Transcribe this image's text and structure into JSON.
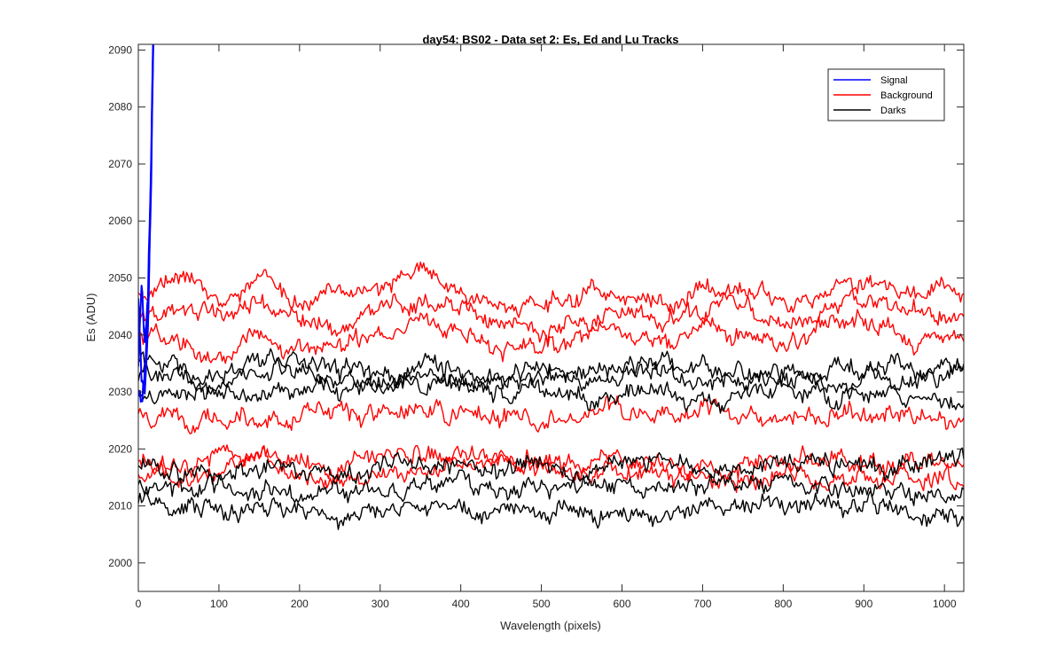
{
  "chart_data": {
    "type": "line",
    "title": "day54: BS02 - Data set 2: Es, Ed and Lu Tracks",
    "xlabel": "Wavelength (pixels)",
    "ylabel": "Es (ADU)",
    "xlim": [
      0,
      1024
    ],
    "ylim": [
      1995,
      2091
    ],
    "xticks": [
      "0",
      "100",
      "200",
      "300",
      "400",
      "500",
      "600",
      "700",
      "800",
      "900",
      "1000"
    ],
    "yticks": [
      "2000",
      "2010",
      "2020",
      "2030",
      "2040",
      "2050",
      "2060",
      "2070",
      "2080",
      "2090"
    ],
    "grid": false,
    "legend_position": "top-right",
    "legend": [
      {
        "name": "Signal",
        "color": "#0000ff"
      },
      {
        "name": "Background",
        "color": "#ff0000"
      },
      {
        "name": "Darks",
        "color": "#000000"
      }
    ],
    "noise_amplitude": 1.8,
    "series": [
      {
        "group": "Signal",
        "color": "#0000ff",
        "x": [
          0,
          4,
          8,
          12,
          16,
          20
        ],
        "y": [
          2047,
          2033,
          2030,
          2042,
          2068,
          2105
        ]
      },
      {
        "group": "Signal",
        "color": "#0000ff",
        "x": [
          0,
          4,
          8,
          12,
          16,
          20
        ],
        "y": [
          2030,
          2028,
          2033,
          2044,
          2070,
          2105
        ]
      },
      {
        "group": "Signal",
        "color": "#0000ff",
        "x": [
          0,
          4,
          8,
          12,
          16,
          20
        ],
        "y": [
          2035,
          2049,
          2039,
          2047,
          2072,
          2105
        ]
      },
      {
        "group": "Background",
        "color": "#ff0000",
        "x": [
          0,
          50,
          100,
          150,
          200,
          250,
          300,
          350,
          400,
          450,
          500,
          550,
          600,
          650,
          700,
          750,
          800,
          850,
          900,
          950,
          1024
        ],
        "y": [
          2048,
          2050,
          2046,
          2049,
          2045,
          2047,
          2048,
          2052,
          2049,
          2046,
          2045,
          2048,
          2047,
          2046,
          2049,
          2048,
          2046,
          2047,
          2050,
          2047,
          2048
        ]
      },
      {
        "group": "Background",
        "color": "#ff0000",
        "x": [
          0,
          50,
          100,
          150,
          200,
          250,
          300,
          350,
          400,
          450,
          500,
          550,
          600,
          650,
          700,
          750,
          800,
          850,
          900,
          950,
          1024
        ],
        "y": [
          2043,
          2045,
          2043,
          2046,
          2042,
          2042,
          2044,
          2046,
          2045,
          2042,
          2041,
          2043,
          2044,
          2042,
          2045,
          2046,
          2042,
          2044,
          2047,
          2044,
          2043
        ]
      },
      {
        "group": "Background",
        "color": "#ff0000",
        "x": [
          0,
          50,
          100,
          150,
          200,
          250,
          300,
          350,
          400,
          450,
          500,
          550,
          600,
          650,
          700,
          750,
          800,
          850,
          900,
          950,
          1024
        ],
        "y": [
          2040,
          2039,
          2037,
          2040,
          2038,
          2037,
          2040,
          2041,
          2040,
          2039,
          2038,
          2040,
          2041,
          2039,
          2041,
          2040,
          2039,
          2041,
          2042,
          2040,
          2040
        ]
      },
      {
        "group": "Background",
        "color": "#ff0000",
        "x": [
          0,
          50,
          100,
          150,
          200,
          250,
          300,
          350,
          400,
          450,
          500,
          550,
          600,
          650,
          700,
          750,
          800,
          850,
          900,
          950,
          1024
        ],
        "y": [
          2026,
          2025,
          2026,
          2025,
          2025,
          2026,
          2026,
          2027,
          2026,
          2026,
          2025,
          2026,
          2027,
          2026,
          2027,
          2026,
          2025,
          2026,
          2026,
          2026,
          2025
        ]
      },
      {
        "group": "Background",
        "color": "#ff0000",
        "x": [
          0,
          50,
          100,
          150,
          200,
          250,
          300,
          350,
          400,
          450,
          500,
          550,
          600,
          650,
          700,
          750,
          800,
          850,
          900,
          950,
          1024
        ],
        "y": [
          2018,
          2018,
          2019,
          2019,
          2018,
          2017,
          2018,
          2019,
          2019,
          2018,
          2018,
          2017,
          2018,
          2017,
          2016,
          2017,
          2019,
          2018,
          2017,
          2018,
          2018
        ]
      },
      {
        "group": "Background",
        "color": "#ff0000",
        "x": [
          0,
          50,
          100,
          150,
          200,
          250,
          300,
          350,
          400,
          450,
          500,
          550,
          600,
          650,
          700,
          750,
          800,
          850,
          900,
          950,
          1024
        ],
        "y": [
          2016,
          2016,
          2016,
          2018,
          2015,
          2015,
          2016,
          2016,
          2017,
          2018,
          2016,
          2015,
          2015,
          2016,
          2015,
          2014,
          2016,
          2015,
          2015,
          2015,
          2013
        ]
      },
      {
        "group": "Darks",
        "color": "#000000",
        "x": [
          0,
          50,
          100,
          150,
          200,
          250,
          300,
          350,
          400,
          450,
          500,
          550,
          600,
          650,
          700,
          750,
          800,
          850,
          900,
          950,
          1024
        ],
        "y": [
          2036,
          2034,
          2033,
          2035,
          2037,
          2034,
          2033,
          2035,
          2034,
          2033,
          2034,
          2033,
          2034,
          2035,
          2034,
          2033,
          2034,
          2033,
          2034,
          2035,
          2034
        ]
      },
      {
        "group": "Darks",
        "color": "#000000",
        "x": [
          0,
          50,
          100,
          150,
          200,
          250,
          300,
          350,
          400,
          450,
          500,
          550,
          600,
          650,
          700,
          750,
          800,
          850,
          900,
          950,
          1024
        ],
        "y": [
          2033,
          2032,
          2031,
          2033,
          2034,
          2032,
          2031,
          2033,
          2032,
          2031,
          2032,
          2031,
          2032,
          2033,
          2032,
          2031,
          2032,
          2031,
          2032,
          2032,
          2033
        ]
      },
      {
        "group": "Darks",
        "color": "#000000",
        "x": [
          0,
          50,
          100,
          150,
          200,
          250,
          300,
          350,
          400,
          450,
          500,
          550,
          600,
          650,
          700,
          750,
          800,
          850,
          900,
          950,
          1024
        ],
        "y": [
          2030,
          2030,
          2029,
          2031,
          2031,
          2030,
          2030,
          2031,
          2031,
          2030,
          2030,
          2029,
          2030,
          2030,
          2030,
          2029,
          2030,
          2029,
          2030,
          2029,
          2029
        ]
      },
      {
        "group": "Darks",
        "color": "#000000",
        "x": [
          0,
          50,
          100,
          150,
          200,
          250,
          300,
          350,
          400,
          450,
          500,
          550,
          600,
          650,
          700,
          750,
          800,
          850,
          900,
          950,
          1024
        ],
        "y": [
          2017,
          2016,
          2015,
          2016,
          2016,
          2015,
          2017,
          2018,
          2017,
          2016,
          2017,
          2016,
          2017,
          2018,
          2017,
          2016,
          2017,
          2018,
          2017,
          2016,
          2018
        ]
      },
      {
        "group": "Darks",
        "color": "#000000",
        "x": [
          0,
          50,
          100,
          150,
          200,
          250,
          300,
          350,
          400,
          450,
          500,
          550,
          600,
          650,
          700,
          750,
          800,
          850,
          900,
          950,
          1024
        ],
        "y": [
          2014,
          2013,
          2013,
          2012,
          2013,
          2012,
          2013,
          2014,
          2014,
          2013,
          2013,
          2012,
          2013,
          2014,
          2013,
          2012,
          2013,
          2014,
          2013,
          2012,
          2013
        ]
      },
      {
        "group": "Darks",
        "color": "#000000",
        "x": [
          0,
          50,
          100,
          150,
          200,
          250,
          300,
          350,
          400,
          450,
          500,
          550,
          600,
          650,
          700,
          750,
          800,
          850,
          900,
          950,
          1024
        ],
        "y": [
          2011,
          2010,
          2009,
          2010,
          2009,
          2008,
          2009,
          2010,
          2010,
          2009,
          2009,
          2008,
          2008,
          2009,
          2010,
          2010,
          2011,
          2010,
          2010,
          2009,
          2008
        ]
      }
    ]
  }
}
